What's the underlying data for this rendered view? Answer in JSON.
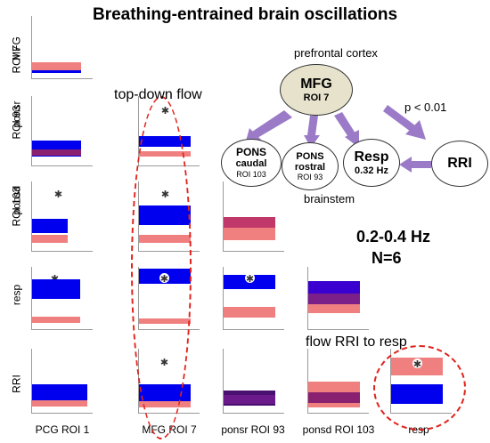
{
  "title": "Breathing-entrained brain oscillations",
  "row_labels": [
    {
      "line1": "MFG",
      "line2": "ROI 7"
    },
    {
      "line1": "ponsr",
      "line2": "ROI 93"
    },
    {
      "line1": "ponsd",
      "line2": "ROI 103"
    },
    {
      "line1": "resp",
      "line2": ""
    },
    {
      "line1": "RRI",
      "line2": ""
    }
  ],
  "col_labels": [
    "PCG ROI 1",
    "MFG ROI 7",
    "ponsr ROI 93",
    "ponsd ROI 103",
    "resp"
  ],
  "colors": {
    "blue": "#0000ee",
    "pink": "#f08080",
    "purple": "#6a1a8a",
    "overlap": "#8a2070",
    "arrow": "#9b7bc7",
    "node_fill": "#e6e2cc",
    "dashed": "#e0231c"
  },
  "star_symbol": "✱",
  "annotations": {
    "top_down": "top-down flow",
    "flow_rri": "flow RRI to resp",
    "freq": "0.2-0.4 Hz",
    "n": "N=6",
    "brainstem": "brainstem",
    "prefrontal": "prefrontal cortex",
    "pvalue": "p < 0.01"
  },
  "nodes": {
    "mfg": {
      "line1": "MFG",
      "line2": "ROI 7"
    },
    "pons_caudal": {
      "line1": "PONS",
      "line2": "caudal",
      "line3": "ROI 103"
    },
    "pons_rostral": {
      "line1": "PONS",
      "line2": "rostral",
      "line3": "ROI 93"
    },
    "resp": {
      "line1": "Resp",
      "line2": "0.32 Hz"
    },
    "rri": {
      "line1": "RRI"
    }
  }
}
